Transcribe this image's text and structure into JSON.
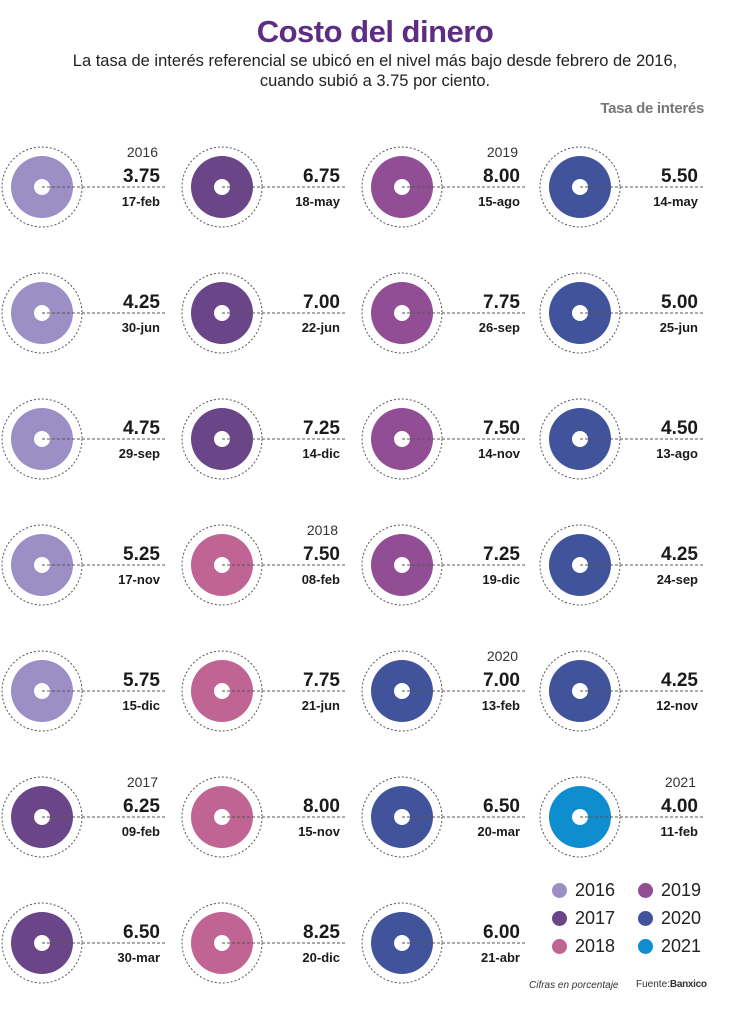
{
  "header": {
    "title": "Costo del dinero",
    "subtitle_line1": "La tasa de interés referencial se ubicó en el nivel más bajo desde febrero de 2016,",
    "subtitle_line2": "cuando subió a 3.75 por ciento.",
    "unit_label": "Tasa de interés"
  },
  "footer": {
    "note": "Cifras en porcentaje",
    "source_prefix": "Fuente:",
    "source_name": "Banxico"
  },
  "year_colors": {
    "2016": "#9b8fc6",
    "2017": "#6a4688",
    "2018": "#c06494",
    "2019": "#914e95",
    "2020": "#41539b",
    "2021": "#0e8ecf"
  },
  "chart_data": {
    "type": "table",
    "ylabel": "Tasa de interés",
    "columns": [
      [
        {
          "year_label": "2016",
          "value": "3.75",
          "date": "17-feb",
          "year": "2016"
        },
        {
          "year_label": "",
          "value": "4.25",
          "date": "30-jun",
          "year": "2016"
        },
        {
          "year_label": "",
          "value": "4.75",
          "date": "29-sep",
          "year": "2016"
        },
        {
          "year_label": "",
          "value": "5.25",
          "date": "17-nov",
          "year": "2016"
        },
        {
          "year_label": "",
          "value": "5.75",
          "date": "15-dic",
          "year": "2016"
        },
        {
          "year_label": "2017",
          "value": "6.25",
          "date": "09-feb",
          "year": "2017"
        },
        {
          "year_label": "",
          "value": "6.50",
          "date": "30-mar",
          "year": "2017"
        }
      ],
      [
        {
          "year_label": "",
          "value": "6.75",
          "date": "18-may",
          "year": "2017"
        },
        {
          "year_label": "",
          "value": "7.00",
          "date": "22-jun",
          "year": "2017"
        },
        {
          "year_label": "",
          "value": "7.25",
          "date": "14-dic",
          "year": "2017"
        },
        {
          "year_label": "2018",
          "value": "7.50",
          "date": "08-feb",
          "year": "2018"
        },
        {
          "year_label": "",
          "value": "7.75",
          "date": "21-jun",
          "year": "2018"
        },
        {
          "year_label": "",
          "value": "8.00",
          "date": "15-nov",
          "year": "2018"
        },
        {
          "year_label": "",
          "value": "8.25",
          "date": "20-dic",
          "year": "2018"
        }
      ],
      [
        {
          "year_label": "2019",
          "value": "8.00",
          "date": "15-ago",
          "year": "2019"
        },
        {
          "year_label": "",
          "value": "7.75",
          "date": "26-sep",
          "year": "2019"
        },
        {
          "year_label": "",
          "value": "7.50",
          "date": "14-nov",
          "year": "2019"
        },
        {
          "year_label": "",
          "value": "7.25",
          "date": "19-dic",
          "year": "2019"
        },
        {
          "year_label": "2020",
          "value": "7.00",
          "date": "13-feb",
          "year": "2020"
        },
        {
          "year_label": "",
          "value": "6.50",
          "date": "20-mar",
          "year": "2020"
        },
        {
          "year_label": "",
          "value": "6.00",
          "date": "21-abr",
          "year": "2020"
        }
      ],
      [
        {
          "year_label": "",
          "value": "5.50",
          "date": "14-may",
          "year": "2020"
        },
        {
          "year_label": "",
          "value": "5.00",
          "date": "25-jun",
          "year": "2020"
        },
        {
          "year_label": "",
          "value": "4.50",
          "date": "13-ago",
          "year": "2020"
        },
        {
          "year_label": "",
          "value": "4.25",
          "date": "24-sep",
          "year": "2020"
        },
        {
          "year_label": "",
          "value": "4.25",
          "date": "12-nov",
          "year": "2020"
        },
        {
          "year_label": "2021",
          "value": "4.00",
          "date": "11-feb",
          "year": "2021"
        }
      ]
    ],
    "legend": [
      {
        "label": "2016",
        "year": "2016"
      },
      {
        "label": "2019",
        "year": "2019"
      },
      {
        "label": "2017",
        "year": "2017"
      },
      {
        "label": "2020",
        "year": "2020"
      },
      {
        "label": "2018",
        "year": "2018"
      },
      {
        "label": "2021",
        "year": "2021"
      }
    ]
  }
}
